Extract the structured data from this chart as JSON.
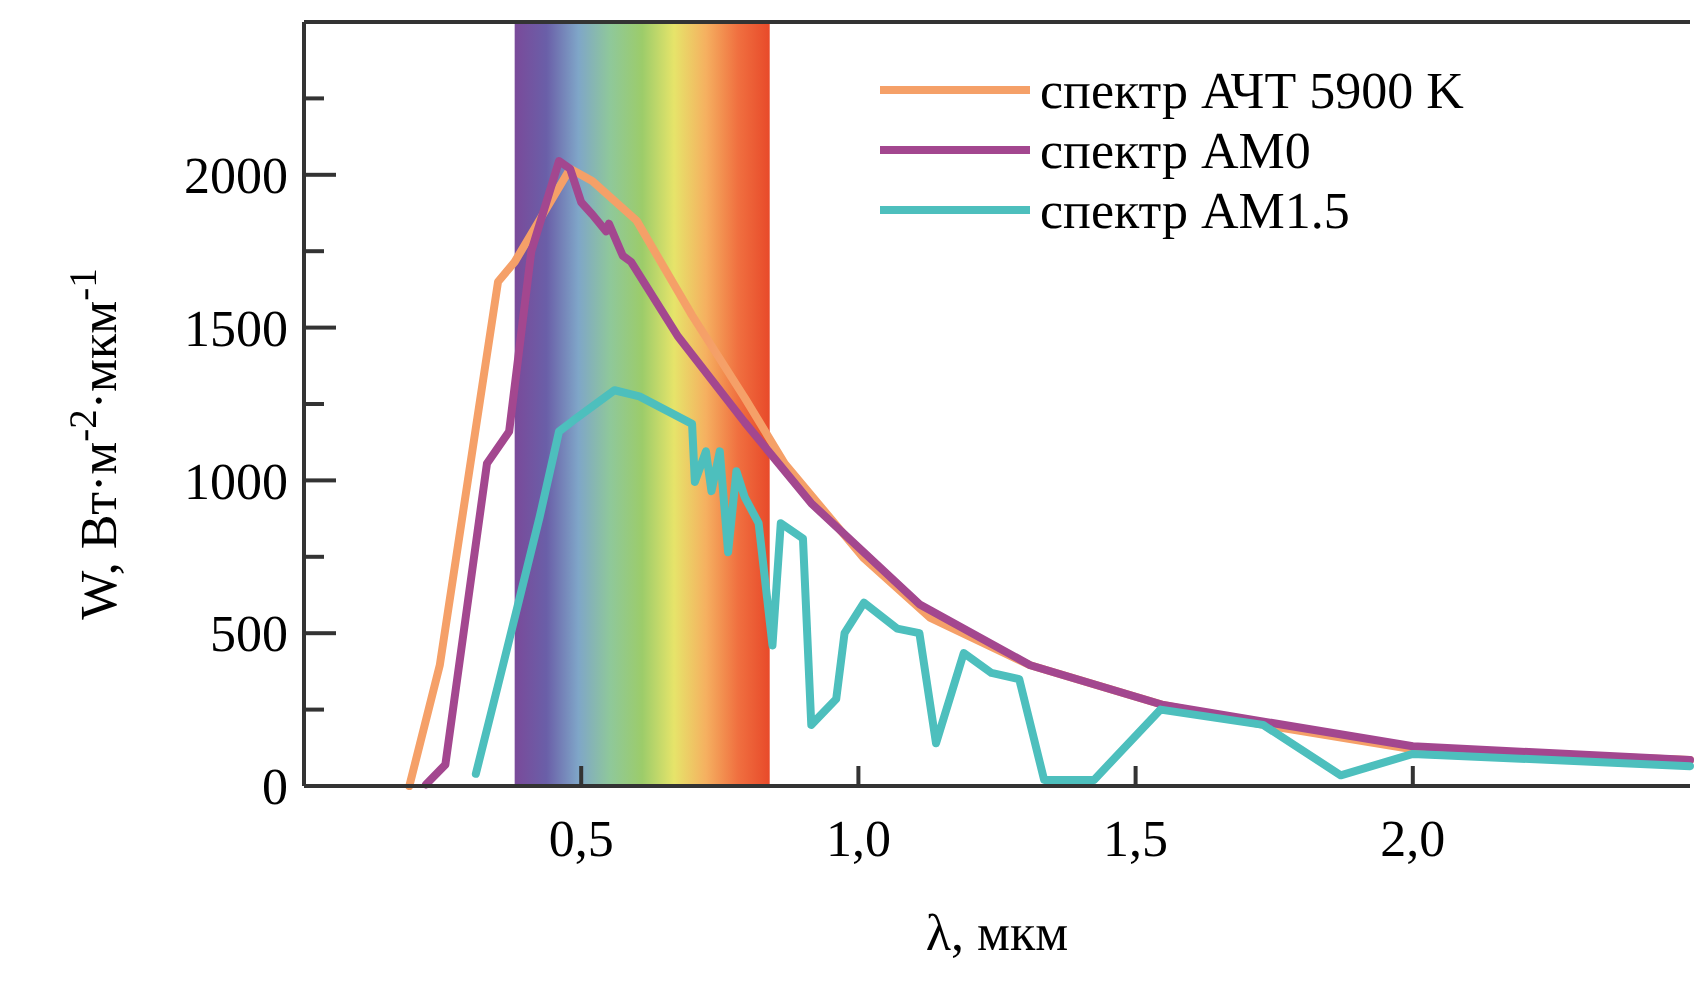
{
  "chart_data": {
    "type": "line",
    "xlabel": "λ, мкм",
    "ylabel": "W, Вт·м$^{-2}$·мкм$^{-1}$",
    "xlim": [
      0,
      2.5
    ],
    "xticks": [
      {
        "value": 0.5,
        "label": "0,5"
      },
      {
        "value": 1.0,
        "label": "1,0"
      },
      {
        "value": 1.5,
        "label": "1,5"
      },
      {
        "value": 2.0,
        "label": "2,0"
      }
    ],
    "ylim": [
      0,
      2500
    ],
    "yticks": [
      0,
      {
        "value": 250,
        "label": null
      },
      500,
      {
        "value": 750,
        "label": null
      },
      1000,
      {
        "value": 1250,
        "label": null
      },
      1500,
      {
        "value": 1750,
        "label": null
      },
      2000,
      {
        "value": 2250,
        "label": null
      }
    ],
    "grid": false,
    "legend": "top right",
    "line_style": "solid",
    "marker": "none",
    "bands": [
      {
        "axis": "x",
        "from": 0.38,
        "to": 0.84
      }
    ],
    "series": [
      {
        "name": "спектр АЧТ 5900 K",
        "color": "#f5a068",
        "x": [
          0.19,
          0.245,
          0.35,
          0.38,
          0.48,
          0.52,
          0.6,
          0.7,
          0.795,
          0.867,
          1.01,
          1.13,
          1.31,
          1.55,
          1.73,
          2.0,
          2.5
        ],
        "values": [
          0,
          396,
          1650,
          1715,
          2020,
          1980,
          1850,
          1540,
          1270,
          1055,
          745,
          550,
          395,
          265,
          200,
          120,
          85
        ]
      },
      {
        "name": "спектр АМ0",
        "color": "#a3478f",
        "x": [
          0.22,
          0.255,
          0.33,
          0.37,
          0.41,
          0.46,
          0.48,
          0.5,
          0.52,
          0.545,
          0.55,
          0.575,
          0.59,
          0.675,
          0.795,
          0.915,
          1.11,
          1.31,
          1.55,
          2.0,
          2.5
        ],
        "values": [
          5,
          70,
          1055,
          1160,
          1750,
          2045,
          2020,
          1910,
          1870,
          1815,
          1840,
          1735,
          1715,
          1470,
          1190,
          925,
          595,
          395,
          265,
          130,
          85
        ]
      },
      {
        "name": "спектр АМ1.5",
        "color": "#4dbfbd",
        "x": [
          0.31,
          0.35,
          0.425,
          0.46,
          0.485,
          0.56,
          0.605,
          0.7,
          0.705,
          0.725,
          0.735,
          0.75,
          0.765,
          0.78,
          0.795,
          0.82,
          0.845,
          0.86,
          0.9,
          0.915,
          0.96,
          0.975,
          1.01,
          1.07,
          1.11,
          1.14,
          1.19,
          1.24,
          1.29,
          1.335,
          1.425,
          1.545,
          1.73,
          1.87,
          2.0,
          2.5
        ],
        "values": [
          40,
          330,
          880,
          1160,
          1195,
          1295,
          1275,
          1185,
          995,
          1095,
          965,
          1095,
          765,
          1030,
          945,
          860,
          460,
          860,
          810,
          200,
          285,
          500,
          600,
          515,
          500,
          140,
          435,
          370,
          350,
          20,
          20,
          250,
          200,
          35,
          105,
          65
        ]
      }
    ]
  }
}
